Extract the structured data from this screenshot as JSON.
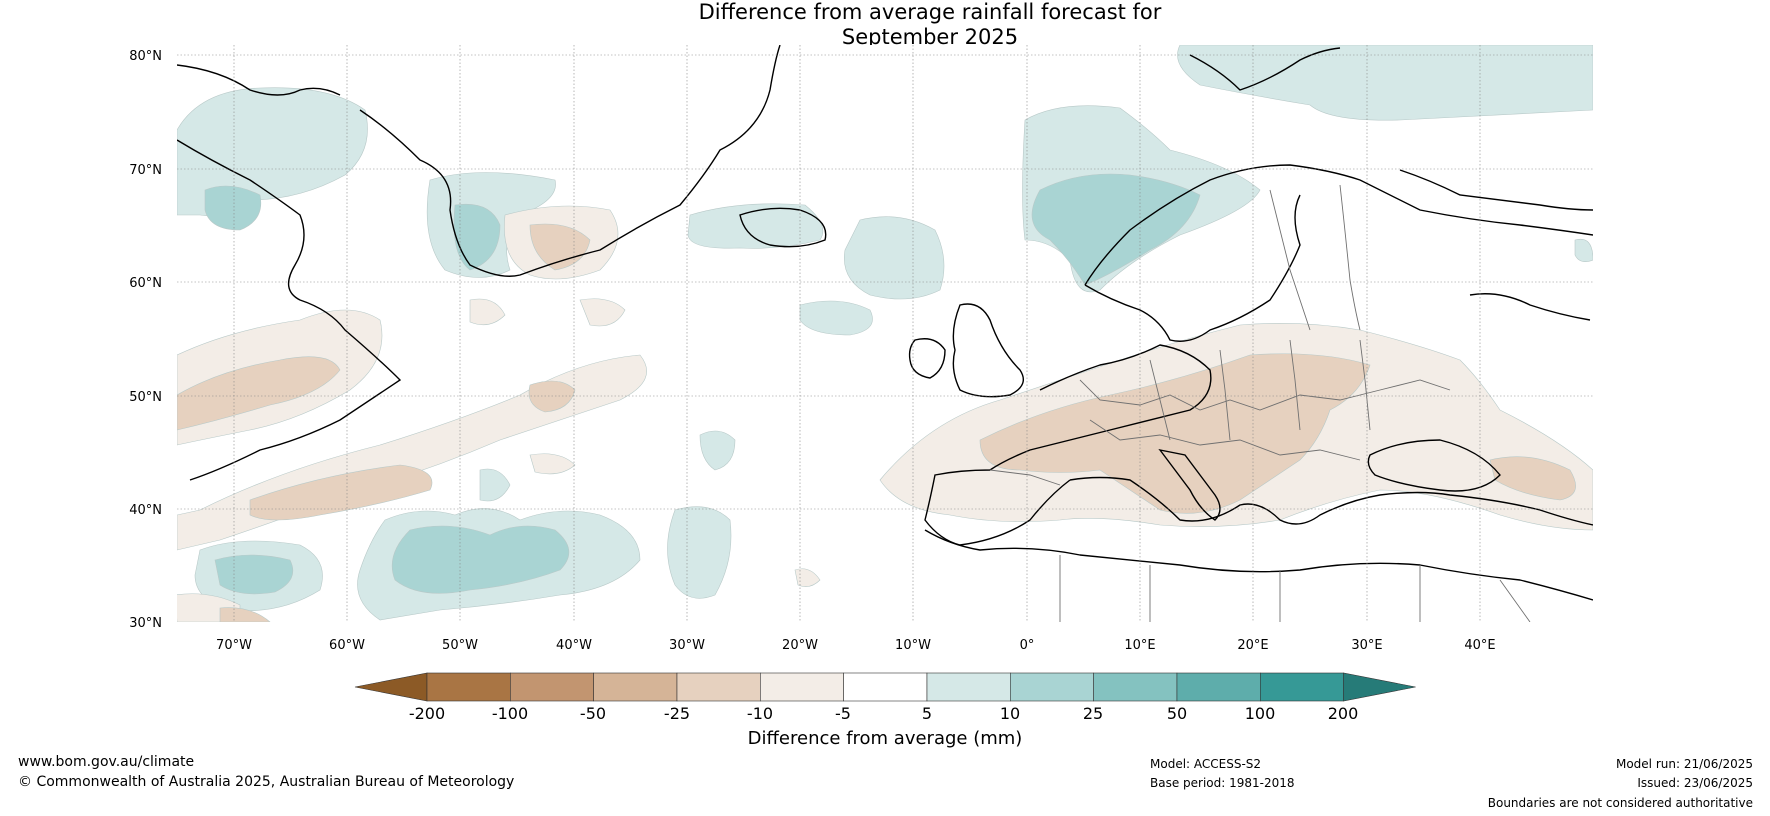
{
  "title": {
    "line1": "Difference from average rainfall forecast for",
    "line2": "September 2025"
  },
  "map": {
    "lat_labels": [
      "80°N",
      "70°N",
      "60°N",
      "50°N",
      "40°N",
      "30°N"
    ],
    "lon_labels": [
      "70°W",
      "60°W",
      "50°W",
      "40°W",
      "30°W",
      "20°W",
      "10°W",
      "0°",
      "10°E",
      "20°E",
      "30°E",
      "40°E"
    ]
  },
  "colorbar": {
    "ticks": [
      "-200",
      "-100",
      "-50",
      "-25",
      "-10",
      "-5",
      "5",
      "10",
      "25",
      "50",
      "100",
      "200"
    ],
    "colors": [
      "#8c5a26",
      "#a97544",
      "#c29570",
      "#d5b497",
      "#e6d1bf",
      "#f3ede7",
      "#ffffff",
      "#d5e8e7",
      "#a9d4d3",
      "#84c2c0",
      "#5eadab",
      "#369996",
      "#267b78"
    ],
    "label": "Difference from average (mm)"
  },
  "footer": {
    "url": "www.bom.gov.au/climate",
    "copyright": "© Commonwealth of Australia 2025, Australian Bureau of Meteorology",
    "model": "Model: ACCESS-S2",
    "base_period": "Base period: 1981-2018",
    "model_run": "Model run: 21/06/2025",
    "issued": "Issued: 23/06/2025",
    "disclaimer": "Boundaries are not considered authoritative"
  }
}
